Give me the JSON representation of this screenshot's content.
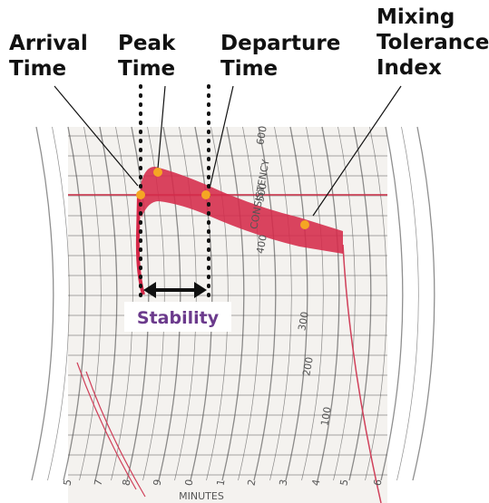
{
  "annotations": [
    {
      "lines": [
        "Arrival",
        "Time"
      ]
    },
    {
      "lines": [
        "Peak",
        "Time"
      ]
    },
    {
      "lines": [
        "Departure",
        "Time"
      ]
    },
    {
      "lines": [
        "Mixing",
        "Tolerance",
        "Index"
      ]
    }
  ],
  "stability": "Stability",
  "paper": {
    "axis_title": "CONSISTENCY",
    "consistency_labels": [
      "600",
      "500",
      "400",
      "300",
      "200",
      "100"
    ],
    "time_labels": [
      "5",
      "7",
      "8",
      "9",
      "0",
      "1",
      "2",
      "3",
      "4",
      "5",
      "6"
    ],
    "time_title": "MINUTES"
  }
}
